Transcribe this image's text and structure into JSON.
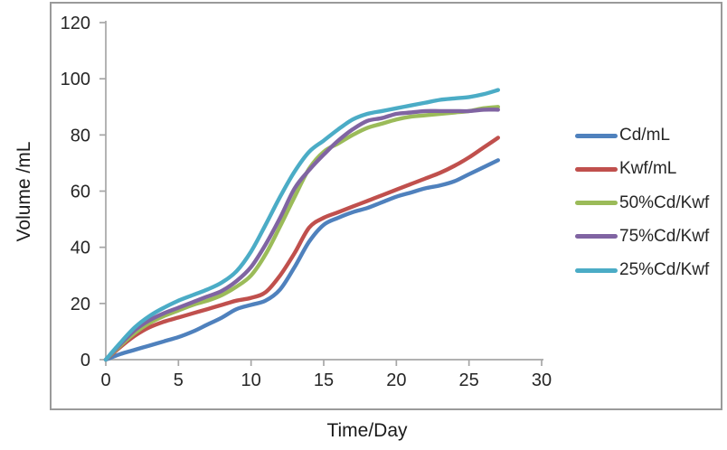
{
  "chart_data": {
    "type": "line",
    "title": "",
    "xlabel": "Time/Day",
    "ylabel": "Volume /mL",
    "xlim": [
      0,
      30
    ],
    "ylim": [
      0,
      120
    ],
    "xticks": [
      0,
      5,
      10,
      15,
      20,
      25,
      30
    ],
    "yticks": [
      0,
      20,
      40,
      60,
      80,
      100,
      120
    ],
    "grid": false,
    "legend_position": "right",
    "line_style": "smooth",
    "x": [
      0,
      1,
      2,
      3,
      4,
      5,
      6,
      7,
      8,
      9,
      10,
      11,
      12,
      13,
      14,
      15,
      16,
      17,
      18,
      19,
      20,
      21,
      22,
      23,
      24,
      25,
      26,
      27
    ],
    "series": [
      {
        "name": "Cd/mL",
        "color": "#4F81BD",
        "values": [
          0,
          2,
          3.5,
          5,
          6.5,
          8,
          10,
          12.5,
          15,
          18,
          19.5,
          21,
          25,
          33,
          42,
          48,
          50.5,
          52.5,
          54,
          56,
          58,
          59.5,
          61,
          62,
          63.5,
          66,
          68.5,
          71
        ]
      },
      {
        "name": "Kwf/mL",
        "color": "#C0504D",
        "values": [
          0,
          4.5,
          8.5,
          11.5,
          13.5,
          15,
          16.5,
          18,
          19.5,
          21,
          22,
          24,
          30,
          38,
          47,
          50.5,
          52.5,
          54.5,
          56.5,
          58.5,
          60.5,
          62.5,
          64.5,
          66.5,
          69,
          72,
          75.5,
          79
        ]
      },
      {
        "name": "50%Cd/Kwf",
        "color": "#9BBB59",
        "values": [
          0,
          5,
          9.5,
          13,
          15.5,
          17.5,
          19.5,
          21,
          23,
          26,
          30,
          37.5,
          47.5,
          58,
          68,
          74,
          77,
          80,
          82.5,
          84,
          85.5,
          86.5,
          87,
          87.5,
          88,
          88.5,
          89.5,
          90
        ]
      },
      {
        "name": "75%Cd/Kwf",
        "color": "#8064A2",
        "values": [
          0,
          5.5,
          10.5,
          14,
          16.5,
          18.5,
          20.5,
          22.5,
          24.5,
          28,
          33,
          41,
          50.5,
          61,
          67.5,
          73,
          78,
          82,
          85,
          86,
          87.5,
          88,
          88.5,
          88.5,
          88.5,
          88.5,
          89,
          89
        ]
      },
      {
        "name": "25%Cd/Kwf",
        "color": "#4BACC6",
        "values": [
          0,
          6,
          11.5,
          15.5,
          18.5,
          21,
          23,
          25,
          27.5,
          31.5,
          38.5,
          48,
          58,
          67,
          74,
          78,
          82,
          85.5,
          87.5,
          88.5,
          89.5,
          90.5,
          91.5,
          92.5,
          93,
          93.5,
          94.5,
          96
        ]
      }
    ]
  },
  "colors": {
    "axis": "#a6a6a6",
    "tick_text": "#262626",
    "frame": "#9a9a9a",
    "background": "#ffffff"
  }
}
